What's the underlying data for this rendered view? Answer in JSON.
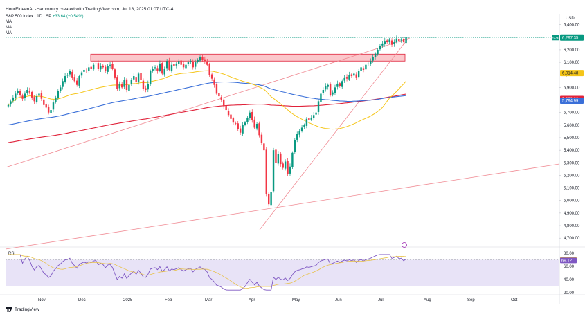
{
  "header": {
    "author_line": "HourEldeenAL-Hammoury created with TradingView.com, Jul 18, 2025 01:07 UTC-4",
    "symbol": "S&P 500 Index · 1D · SP",
    "change": "+33.64 (+0.54%)",
    "indicators": [
      "MA",
      "MA",
      "MA"
    ]
  },
  "currency": "USD",
  "rsi_label": "RSI",
  "logo_text": "TradingView",
  "colors": {
    "up": "#089981",
    "down": "#f23645",
    "ma_fast": "#f5c518",
    "ma_mid": "#3a6fd8",
    "ma_slow": "#e0223a",
    "trend": "#f08a93",
    "rsi": "#7e57c2",
    "rsi_band": "#e8e3f7",
    "rsi_ma": "#e8c24a"
  },
  "chart_data": {
    "type": "candlestick",
    "x_labels": [
      "Nov",
      "Dec",
      "2025",
      "Feb",
      "Mar",
      "Apr",
      "May",
      "Jun",
      "Jul",
      "Aug",
      "Sep",
      "Oct"
    ],
    "price_ticks": [
      "6,400.00",
      "6,300.00",
      "6,200.00",
      "6,100.00",
      "6,000.00",
      "5,900.00",
      "5,800.00",
      "5,700.00",
      "5,600.00",
      "5,500.00",
      "5,400.00",
      "5,300.00",
      "5,200.00",
      "5,100.00",
      "5,000.00",
      "4,900.00",
      "4,800.00",
      "4,700.00"
    ],
    "price_range": [
      4690,
      6420
    ],
    "price_badges": [
      {
        "text": "6,297.35",
        "value": 6297.35,
        "color": "#089981",
        "tag": "SPX"
      },
      {
        "text": "6,014.48",
        "value": 6014.48,
        "color": "#f5c518"
      },
      {
        "text": "5,808.33",
        "value": 5808.33,
        "color": "#e0223a"
      },
      {
        "text": "5,794.99",
        "value": 5794.99,
        "color": "#3a6fd8"
      }
    ],
    "resistance_zone": [
      6110,
      6165
    ],
    "closes": [
      5760,
      5790,
      5820,
      5850,
      5870,
      5840,
      5810,
      5850,
      5880,
      5860,
      5820,
      5790,
      5830,
      5850,
      5810,
      5760,
      5740,
      5700,
      5720,
      5780,
      5820,
      5870,
      5900,
      5950,
      5990,
      6000,
      6030,
      5980,
      5950,
      5920,
      5990,
      6020,
      6040,
      6030,
      6060,
      6050,
      6080,
      6090,
      6050,
      6070,
      6060,
      6030,
      6070,
      6080,
      6050,
      5980,
      5890,
      5930,
      5900,
      5960,
      5880,
      5920,
      5960,
      5990,
      5940,
      6010,
      5960,
      5890,
      5880,
      5930,
      6030,
      6050,
      6060,
      6030,
      6090,
      6010,
      6050,
      6110,
      6040,
      6080,
      6070,
      6090,
      6110,
      6080,
      6060,
      6080,
      6100,
      6110,
      6060,
      6100,
      6120,
      6140,
      6120,
      6110,
      6080,
      6000,
      5970,
      5920,
      5850,
      5830,
      5800,
      5750,
      5720,
      5680,
      5650,
      5620,
      5610,
      5570,
      5540,
      5600,
      5620,
      5660,
      5700,
      5640,
      5580,
      5610,
      5520,
      5460,
      5400,
      5050,
      4970,
      5070,
      5400,
      5300,
      5370,
      5290,
      5260,
      5310,
      5210,
      5270,
      5380,
      5480,
      5530,
      5550,
      5580,
      5600,
      5650,
      5640,
      5660,
      5680,
      5700,
      5790,
      5850,
      5880,
      5910,
      5920,
      5840,
      5860,
      5900,
      5930,
      5910,
      5950,
      5980,
      5970,
      6000,
      5990,
      6010,
      5980,
      6030,
      6060,
      6040,
      6080,
      6090,
      6110,
      6140,
      6170,
      6200,
      6230,
      6250,
      6270,
      6260,
      6280,
      6240,
      6260,
      6290,
      6270,
      6280,
      6260,
      6297
    ],
    "rsi_range": [
      20,
      80
    ],
    "rsi_ticks": [
      "80.00",
      "60.00",
      "40.00",
      "20.00"
    ],
    "rsi_badges": [
      {
        "text": "69.74",
        "value": 69.74,
        "color": "#f5c518"
      },
      {
        "text": "69.12",
        "value": 69.12,
        "color": "#7e57c2"
      }
    ],
    "rsi_overbought": 70,
    "rsi_oversold": 30
  }
}
